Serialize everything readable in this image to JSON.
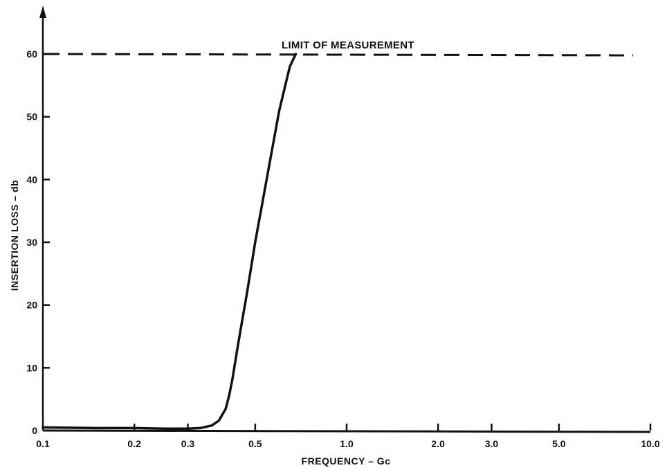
{
  "chart_data": {
    "type": "line",
    "title": "",
    "xlabel": "FREQUENCY – Gc",
    "ylabel": "INSERTION LOSS – db",
    "x_scale": "log",
    "xlim": [
      0.1,
      10.0
    ],
    "ylim": [
      0,
      60
    ],
    "x_ticks": [
      0.1,
      0.2,
      0.3,
      0.5,
      1.0,
      2.0,
      3.0,
      5.0,
      10.0
    ],
    "x_tick_labels": [
      "0.1",
      "0.2",
      "0.3",
      "0.5",
      "1.0",
      "2.0",
      "3.0",
      "5.0",
      "10.0"
    ],
    "y_ticks": [
      0,
      10,
      20,
      30,
      40,
      50,
      60
    ],
    "y_tick_labels": [
      "0",
      "10",
      "20",
      "30",
      "40",
      "50",
      "60"
    ],
    "grid": false,
    "series": [
      {
        "x": [
          0.1,
          0.15,
          0.2,
          0.25,
          0.3,
          0.33,
          0.36,
          0.38,
          0.4,
          0.41,
          0.42,
          0.44,
          0.47,
          0.5,
          0.55,
          0.6,
          0.65,
          0.68
        ],
        "y": [
          0.5,
          0.4,
          0.4,
          0.3,
          0.3,
          0.4,
          0.8,
          1.6,
          3.5,
          5.5,
          8,
          14,
          22,
          30,
          41,
          51,
          58,
          60
        ]
      }
    ],
    "reference_line": {
      "y": 60,
      "label": "LIMIT OF MEASUREMENT",
      "style": "dashed"
    },
    "colors": {
      "line": "#111111",
      "background": "#ffffff"
    }
  }
}
